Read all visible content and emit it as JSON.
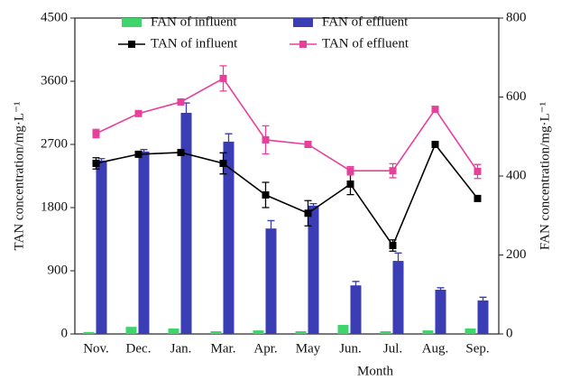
{
  "chart_data": {
    "type": "combo",
    "x_label": "Month",
    "y_label": "TAN concentration/mg·L⁻¹",
    "y2_label": "FAN concentration/mg·L⁻¹",
    "categories": [
      "Nov.",
      "Dec.",
      "Jan.",
      "Mar.",
      "Apr.",
      "May",
      "Jun.",
      "Jul.",
      "Aug.",
      "Sep."
    ],
    "ylim": [
      0,
      4500
    ],
    "yticks": [
      0,
      900,
      1800,
      2700,
      3600,
      4500
    ],
    "y2lim": [
      0,
      800
    ],
    "y2ticks": [
      0,
      200,
      400,
      600,
      800
    ],
    "series": [
      {
        "name": "FAN of influent",
        "kind": "bar",
        "axis": "y2",
        "color": "#3fd46c",
        "values": [
          5,
          18,
          14,
          7,
          9,
          7,
          23,
          7,
          9,
          14
        ]
      },
      {
        "name": "FAN of effluent",
        "kind": "bar",
        "axis": "y2",
        "color": "#3a3db3",
        "values": [
          439,
          462,
          560,
          487,
          267,
          325,
          123,
          185,
          112,
          85
        ],
        "errors": [
          5,
          5,
          25,
          20,
          20,
          5,
          10,
          20,
          5,
          8
        ]
      },
      {
        "name": "TAN of influent",
        "kind": "line",
        "color": "#000000",
        "values": [
          2430,
          2560,
          2585,
          2430,
          1980,
          1720,
          2135,
          1260,
          2700,
          1930
        ],
        "errors": [
          80,
          30,
          30,
          150,
          180,
          180,
          150,
          80,
          30,
          30
        ]
      },
      {
        "name": "TAN of effluent",
        "kind": "line",
        "color": "#e6409b",
        "values": [
          2855,
          3140,
          3305,
          3640,
          2765,
          2700,
          2325,
          2325,
          3200,
          2315
        ],
        "errors": [
          60,
          30,
          30,
          180,
          200,
          40,
          60,
          100,
          30,
          100
        ]
      }
    ]
  }
}
